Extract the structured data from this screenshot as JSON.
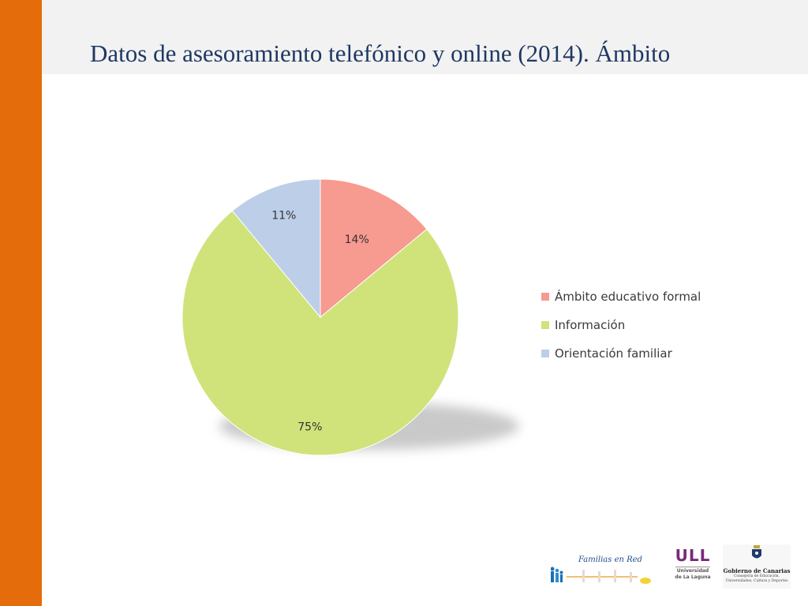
{
  "slide": {
    "title": "Datos de  asesoramiento telefónico y online (2014). Ámbito"
  },
  "chart_data": {
    "type": "pie",
    "title": "",
    "categories": [
      "Ámbito educativo formal",
      "Información",
      "Orientación familiar"
    ],
    "values": [
      14,
      75,
      11
    ],
    "labels": [
      "14%",
      "75%",
      "11%"
    ],
    "colors": [
      "#f79a8f",
      "#cfe37a",
      "#bccee8"
    ],
    "start": "12 o'clock, clockwise",
    "legend": "right"
  },
  "logos": {
    "familias": {
      "text": "Familias en Red"
    },
    "ull": {
      "mark": "ULL",
      "line1": "Universidad",
      "line2": "de La Laguna"
    },
    "gobierno": {
      "name": "Gobierno de Canarias",
      "dept_line1": "Consejería de Educación,",
      "dept_line2": "Universidades, Cultura y Deportes"
    }
  }
}
